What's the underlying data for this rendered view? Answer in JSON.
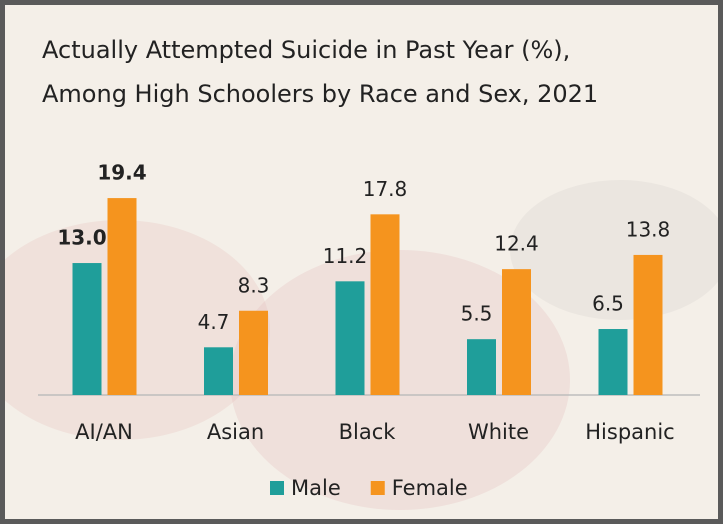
{
  "chart_data": {
    "type": "bar",
    "title": [
      "Actually Attempted Suicide in Past Year (%),",
      "Among High Schoolers by Race and Sex, 2021"
    ],
    "categories": [
      "AI/AN",
      "Asian",
      "Black",
      "White",
      "Hispanic"
    ],
    "highlight": "AI/AN",
    "series": [
      {
        "name": "Male",
        "color": "#1f9e9a",
        "values": [
          13.0,
          4.7,
          11.2,
          5.5,
          6.5
        ],
        "value_labels": [
          "13.0",
          "4.7",
          "11.2",
          "5.5",
          "6.5"
        ]
      },
      {
        "name": "Female",
        "color": "#f5941e",
        "values": [
          19.4,
          8.3,
          17.8,
          12.4,
          13.8
        ],
        "value_labels": [
          "19.4",
          "8.3",
          "17.8",
          "12.4",
          "13.8"
        ]
      }
    ],
    "ylim": [
      0,
      20
    ],
    "legend": "bottom"
  }
}
